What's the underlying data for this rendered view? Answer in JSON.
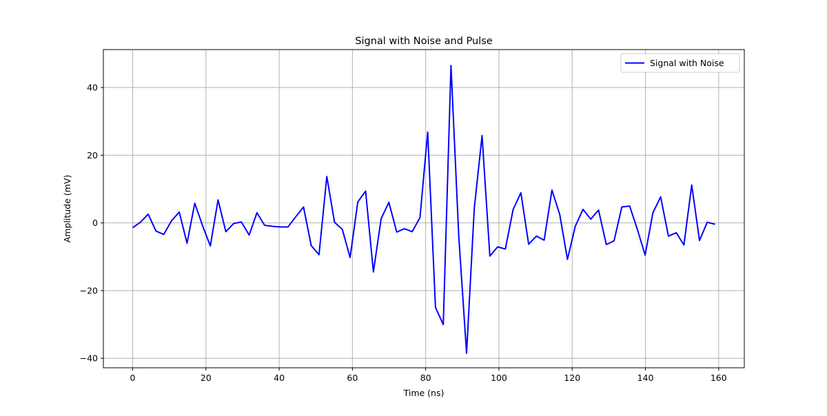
{
  "chart_data": {
    "type": "line",
    "title": "Signal with Noise and Pulse",
    "xlabel": "Time (ns)",
    "ylabel": "Amplitude (mV)",
    "xlim": [
      -8,
      167
    ],
    "ylim": [
      -42.8,
      51.2
    ],
    "xticks": [
      0,
      20,
      40,
      60,
      80,
      100,
      120,
      140,
      160
    ],
    "yticks": [
      -40,
      -20,
      0,
      20,
      40
    ],
    "xtick_labels": [
      "0",
      "20",
      "40",
      "60",
      "80",
      "100",
      "120",
      "140",
      "160"
    ],
    "ytick_labels": [
      "−40",
      "−20",
      "0",
      "20",
      "40"
    ],
    "grid": true,
    "legend_position": "top-right",
    "series": [
      {
        "name": "Signal with Noise",
        "color": "#0000ff",
        "x": [
          0,
          2.12,
          4.24,
          6.36,
          8.48,
          10.6,
          12.72,
          14.84,
          16.96,
          19.08,
          21.2,
          23.32,
          25.44,
          27.56,
          29.68,
          31.8,
          33.92,
          36.04,
          38.16,
          40.28,
          42.4,
          44.52,
          46.64,
          48.76,
          50.88,
          53.0,
          55.12,
          57.24,
          59.36,
          61.48,
          63.6,
          65.72,
          67.84,
          69.96,
          72.08,
          74.2,
          76.32,
          78.44,
          80.56,
          82.68,
          84.8,
          86.92,
          89.04,
          91.16,
          93.28,
          95.4,
          97.52,
          99.64,
          101.76,
          103.88,
          106.0,
          108.12,
          110.24,
          112.36,
          114.48,
          116.6,
          118.72,
          120.84,
          122.96,
          125.08,
          127.2,
          129.32,
          131.44,
          133.56,
          135.68,
          137.8,
          139.92,
          142.04,
          144.16,
          146.28,
          148.4,
          150.52,
          152.64,
          154.76,
          156.88,
          159.0
        ],
        "y": [
          -1.4,
          0.2,
          2.6,
          -2.4,
          -3.4,
          0.6,
          3.2,
          -6.0,
          5.8,
          -0.8,
          -6.8,
          6.8,
          -2.6,
          -0.2,
          0.3,
          -3.6,
          3.0,
          -0.7,
          -1.0,
          -1.2,
          -1.2,
          1.8,
          4.7,
          -6.7,
          -9.4,
          13.7,
          0.2,
          -1.9,
          -10.2,
          6.2,
          9.4,
          -14.5,
          1.2,
          6.1,
          -2.7,
          -1.7,
          -2.6,
          1.6,
          26.8,
          -25.0,
          -30.0,
          46.5,
          -4.0,
          -38.5,
          4.3,
          25.8,
          -9.8,
          -7.1,
          -7.7,
          4.0,
          8.9,
          -6.3,
          -3.9,
          -5.1,
          9.7,
          2.5,
          -10.8,
          -1.0,
          4.0,
          1.1,
          3.8,
          -6.4,
          -5.3,
          4.7,
          5.0,
          -1.9,
          -9.5,
          3.0,
          7.7,
          -3.9,
          -2.9,
          -6.5,
          11.2,
          -5.2,
          0.2,
          -0.4
        ]
      }
    ]
  }
}
